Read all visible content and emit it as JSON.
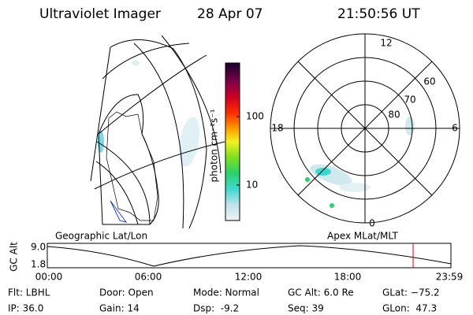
{
  "header": {
    "title": "Ultraviolet Imager",
    "date": "28 Apr 07",
    "time": "21:50:56 UT"
  },
  "colorbar": {
    "label": "photon cm⁻²s⁻¹",
    "ticks": [
      "100",
      "10"
    ]
  },
  "polar": {
    "mlt_labels": [
      "12",
      "18",
      "6",
      "0"
    ],
    "lat_labels": [
      "60",
      "70",
      "80"
    ]
  },
  "timeline": {
    "left_title": "Geographic Lat/Lon",
    "right_title": "Apex MLat/MLT",
    "axis_label": "GC Alt",
    "y_labels": [
      "9.0",
      "1.8"
    ],
    "time_labels": [
      "00:00",
      "06:00",
      "12:00",
      "18:00",
      "23:59"
    ]
  },
  "footer": {
    "rows": [
      [
        "Flt: LBHL",
        "Door: Open",
        "Mode: Normal",
        "GC Alt: 6.0 Re",
        "GLat: −75.2"
      ],
      [
        "IP: 36.0",
        "Gain: 14",
        "Dsp:  -9.2",
        "Seq: 39",
        "GLon:  47.3"
      ]
    ]
  }
}
